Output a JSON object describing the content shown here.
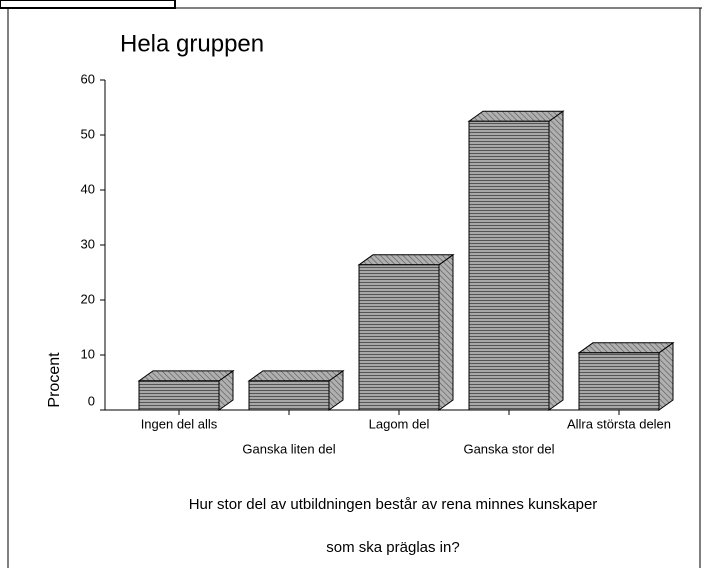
{
  "chart_data": {
    "type": "bar3d",
    "title": "Hela gruppen",
    "ylabel": "Procent",
    "xlabel": [
      "Hur stor del av utbildningen består av rena minnes kunskaper",
      "som ska präglas in?"
    ],
    "categories": [
      "Ingen del alls",
      "Ganska liten del",
      "Lagom del",
      "Ganska stor del",
      "Allra största delen"
    ],
    "values": [
      5.3,
      5.3,
      26.4,
      52.5,
      10.4
    ],
    "color": "#9a9a9a",
    "ylim": [
      0,
      60
    ],
    "yticks": [
      0,
      10,
      20,
      30,
      40,
      50,
      60
    ]
  }
}
